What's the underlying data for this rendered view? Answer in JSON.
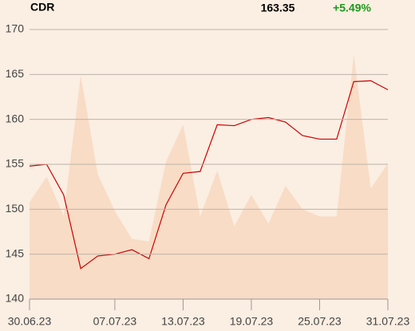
{
  "header": {
    "symbol": "CDR",
    "price": "163.35",
    "change": "+5.49%"
  },
  "chart_data": {
    "type": "line",
    "categories": [
      "30.06.23",
      null,
      null,
      null,
      null,
      "07.07.23",
      null,
      null,
      null,
      "13.07.23",
      null,
      null,
      null,
      "19.07.23",
      null,
      null,
      null,
      "25.07.23",
      null,
      null,
      null,
      "31.07.23"
    ],
    "series": [
      {
        "kind": "area",
        "color": "#f8dcc6",
        "values": [
          150.8,
          153.6,
          149.3,
          164.9,
          153.9,
          149.8,
          146.7,
          146.4,
          155.3,
          159.4,
          149.2,
          154.3,
          148.1,
          151.6,
          148.4,
          152.6,
          150.0,
          149.2,
          149.2,
          167.2,
          152.3,
          155.1
        ]
      },
      {
        "kind": "line",
        "color": "#cc0000",
        "values": [
          154.8,
          155.0,
          151.6,
          143.4,
          144.8,
          145.0,
          145.5,
          144.5,
          150.5,
          154.0,
          154.2,
          159.4,
          159.3,
          160.0,
          160.2,
          159.7,
          158.2,
          157.8,
          157.8,
          164.2,
          164.3,
          163.3
        ]
      }
    ],
    "ylim": [
      140,
      170
    ],
    "yticks": [
      140,
      145,
      150,
      155,
      160,
      165,
      170
    ],
    "grid": true
  }
}
